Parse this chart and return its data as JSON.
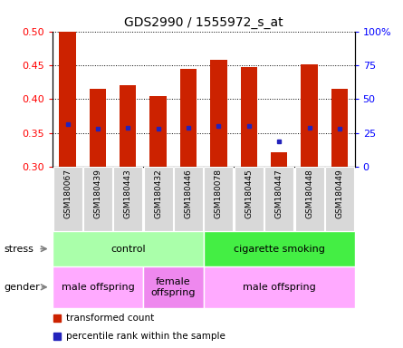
{
  "title": "GDS2990 / 1555972_s_at",
  "samples": [
    "GSM180067",
    "GSM180439",
    "GSM180443",
    "GSM180432",
    "GSM180446",
    "GSM180078",
    "GSM180445",
    "GSM180447",
    "GSM180448",
    "GSM180449"
  ],
  "bar_bottom": 0.3,
  "bar_top": [
    0.5,
    0.415,
    0.42,
    0.405,
    0.445,
    0.458,
    0.447,
    0.322,
    0.452,
    0.415
  ],
  "blue_dot_y": [
    0.363,
    0.356,
    0.358,
    0.356,
    0.358,
    0.36,
    0.36,
    0.338,
    0.358,
    0.356
  ],
  "ylim": [
    0.3,
    0.5
  ],
  "yticks": [
    0.3,
    0.35,
    0.4,
    0.45,
    0.5
  ],
  "right_yticks_vals": [
    0,
    25,
    50,
    75,
    100
  ],
  "right_ytick_labels": [
    "0",
    "25",
    "50",
    "75",
    "100%"
  ],
  "right_ylim": [
    0,
    100
  ],
  "bar_color": "#cc2200",
  "dot_color": "#2222bb",
  "bar_width": 0.55,
  "stress_groups": [
    {
      "label": "control",
      "start": 0,
      "end": 5,
      "color": "#aaffaa"
    },
    {
      "label": "cigarette smoking",
      "start": 5,
      "end": 10,
      "color": "#44ee44"
    }
  ],
  "gender_groups": [
    {
      "label": "male offspring",
      "start": 0,
      "end": 3,
      "color": "#ffaaff"
    },
    {
      "label": "female\noffspring",
      "start": 3,
      "end": 5,
      "color": "#ee88ee"
    },
    {
      "label": "male offspring",
      "start": 5,
      "end": 10,
      "color": "#ffaaff"
    }
  ],
  "legend_items": [
    {
      "color": "#cc2200",
      "label": "transformed count"
    },
    {
      "color": "#2222bb",
      "label": "percentile rank within the sample"
    }
  ],
  "tick_bg_color": "#d8d8d8",
  "grid_color": "black"
}
